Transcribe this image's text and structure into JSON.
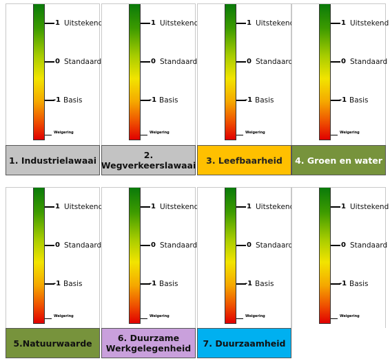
{
  "scale": {
    "top_value": "1",
    "top_label": "Uitstekend",
    "mid_value": "0",
    "mid_label": "Standaard",
    "low_value": "-1",
    "low_label": "Basis",
    "bottom_label": "Weigering"
  },
  "criteria": [
    {
      "label": "1. Industrielawaai",
      "color": "#c3c3c3",
      "text_color": "#111111"
    },
    {
      "label": "2. Wegverkeerslawaai",
      "color": "#c3c3c3",
      "text_color": "#111111"
    },
    {
      "label": "3. Leefbaarheid",
      "color": "#ffc000",
      "text_color": "#222222"
    },
    {
      "label": "4. Groen en water",
      "color": "#77933c",
      "text_color": "#ffffff"
    },
    {
      "label": "5.Natuurwaarde",
      "color": "#77933c",
      "text_color": "#111111"
    },
    {
      "label": "6. Duurzame Werkgelegenheid",
      "color": "#c9a0dc",
      "text_color": "#111111"
    },
    {
      "label": "7. Duurzaamheid",
      "color": "#00b0f0",
      "text_color": "#111111"
    },
    {
      "label": "",
      "color": "#ffffff",
      "text_color": "#111111"
    }
  ]
}
